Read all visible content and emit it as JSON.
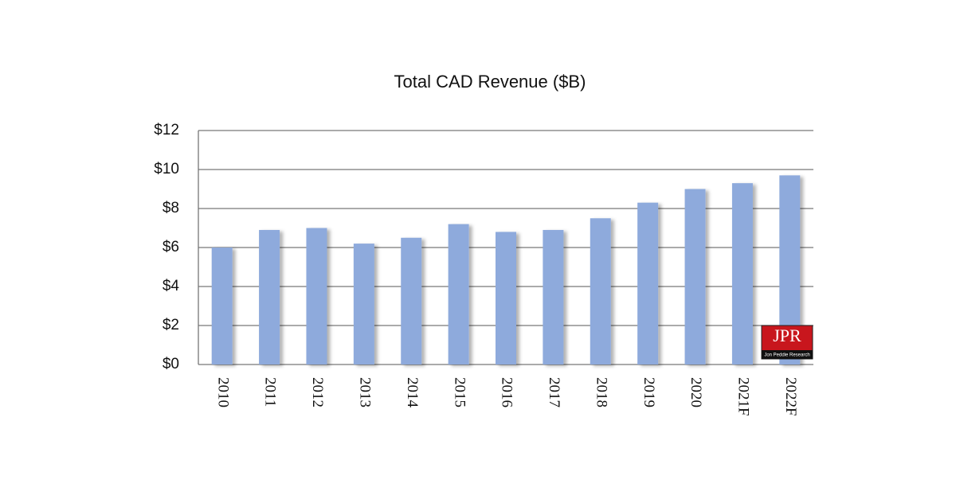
{
  "chart_data": {
    "type": "bar",
    "title": "Total CAD Revenue ($B)",
    "categories": [
      "2010",
      "2011",
      "2012",
      "2013",
      "2014",
      "2015",
      "2016",
      "2017",
      "2018",
      "2019",
      "2020",
      "2021F",
      "2022F"
    ],
    "values": [
      6.0,
      6.9,
      7.0,
      6.2,
      6.5,
      7.2,
      6.8,
      6.9,
      7.5,
      8.3,
      9.0,
      9.3,
      9.7
    ],
    "color": "#8eaadc",
    "ylim": [
      0,
      12
    ],
    "yticks": [
      {
        "value": 0,
        "label": "$0"
      },
      {
        "value": 2,
        "label": "$2"
      },
      {
        "value": 4,
        "label": "$4"
      },
      {
        "value": 6,
        "label": "$6"
      },
      {
        "value": 8,
        "label": "$8"
      },
      {
        "value": 10,
        "label": "$10"
      },
      {
        "value": 12,
        "label": "$12"
      }
    ],
    "grid": true,
    "logo": {
      "text": "JPR",
      "subtitle": "Jon Peddie Research"
    }
  }
}
